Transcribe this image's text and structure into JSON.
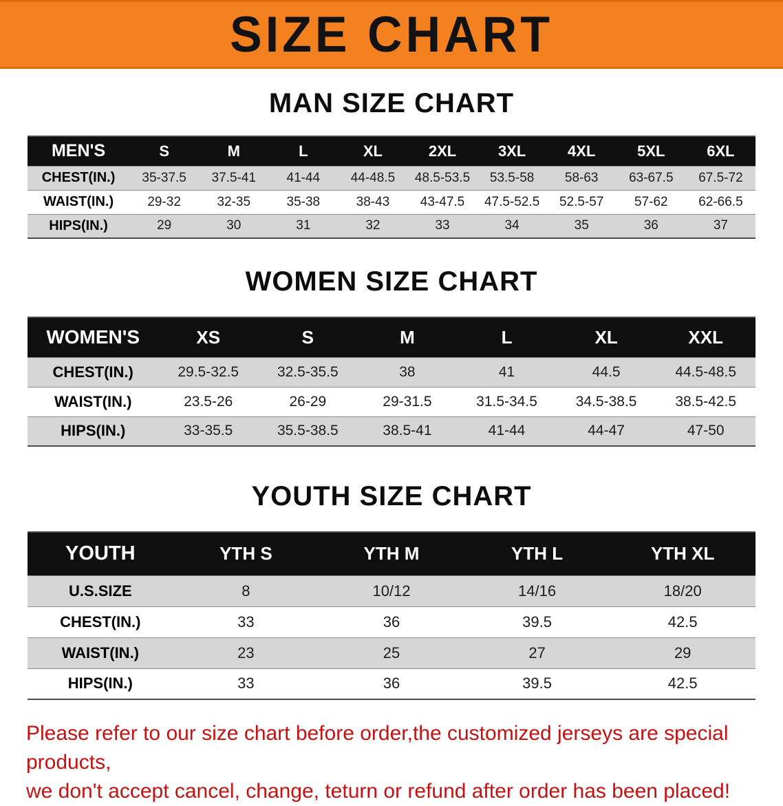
{
  "banner": {
    "title": "SIZE CHART",
    "bg_color": "#f4811f"
  },
  "sections": [
    {
      "id": "men",
      "heading": "MAN SIZE CHART",
      "table": {
        "header": [
          "MEN'S",
          "S",
          "M",
          "L",
          "XL",
          "2XL",
          "3XL",
          "4XL",
          "5XL",
          "6XL"
        ],
        "rows": [
          [
            "CHEST(IN.)",
            "35-37.5",
            "37.5-41",
            "41-44",
            "44-48.5",
            "48.5-53.5",
            "53.5-58",
            "58-63",
            "63-67.5",
            "67.5-72"
          ],
          [
            "WAIST(IN.)",
            "29-32",
            "32-35",
            "35-38",
            "38-43",
            "43-47.5",
            "47.5-52.5",
            "52.5-57",
            "57-62",
            "62-66.5"
          ],
          [
            "HIPS(IN.)",
            "29",
            "30",
            "31",
            "32",
            "33",
            "34",
            "35",
            "36",
            "37"
          ]
        ]
      }
    },
    {
      "id": "women",
      "heading": "WOMEN SIZE CHART",
      "table": {
        "header": [
          "WOMEN'S",
          "XS",
          "S",
          "M",
          "L",
          "XL",
          "XXL"
        ],
        "rows": [
          [
            "CHEST(IN.)",
            "29.5-32.5",
            "32.5-35.5",
            "38",
            "41",
            "44.5",
            "44.5-48.5"
          ],
          [
            "WAIST(IN.)",
            "23.5-26",
            "26-29",
            "29-31.5",
            "31.5-34.5",
            "34.5-38.5",
            "38.5-42.5"
          ],
          [
            "HIPS(IN.)",
            "33-35.5",
            "35.5-38.5",
            "38.5-41",
            "41-44",
            "44-47",
            "47-50"
          ]
        ]
      }
    },
    {
      "id": "youth",
      "heading": "YOUTH SIZE CHART",
      "table": {
        "header": [
          "YOUTH",
          "YTH S",
          "YTH M",
          "YTH L",
          "YTH XL"
        ],
        "rows": [
          [
            "U.S.SIZE",
            "8",
            "10/12",
            "14/16",
            "18/20"
          ],
          [
            "CHEST(IN.)",
            "33",
            "36",
            "39.5",
            "42.5"
          ],
          [
            "WAIST(IN.)",
            "23",
            "25",
            "27",
            "29"
          ],
          [
            "HIPS(IN.)",
            "33",
            "36",
            "39.5",
            "42.5"
          ]
        ]
      }
    }
  ],
  "footer": {
    "line1": "Please refer to our size chart before order,the customized jerseys are special products,",
    "line2": "we don't accept cancel, change, teturn or refund after order has been placed!",
    "text_color": "#c41212"
  }
}
